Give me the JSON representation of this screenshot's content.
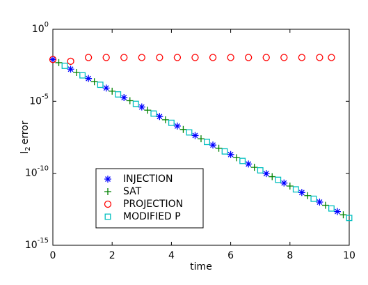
{
  "chart_data": {
    "type": "scatter",
    "log_y": true,
    "xlabel": "time",
    "ylabel": {
      "main": "l",
      "sub": "2",
      "rest": "error"
    },
    "xlim": [
      0,
      10
    ],
    "xticks": [
      0,
      2,
      4,
      6,
      8,
      10
    ],
    "ylim": [
      1e-15,
      1
    ],
    "yticks": [
      {
        "value": 1,
        "label": "10",
        "exponent": "0"
      },
      {
        "value": 1e-05,
        "label": "10",
        "exponent": "-5"
      },
      {
        "value": 1e-10,
        "label": "10",
        "exponent": "-10"
      },
      {
        "value": 1e-15,
        "label": "10",
        "exponent": "-15"
      }
    ],
    "legend": "lower-left",
    "series": [
      {
        "name": "INJECTION",
        "color": "#0000ff",
        "marker": "asterisk",
        "x": [
          0,
          0.6,
          1.2,
          1.8,
          2.4,
          3.0,
          3.6,
          4.2,
          4.8,
          5.4,
          6.0,
          6.6,
          7.2,
          7.8,
          8.4,
          9.0,
          9.6
        ],
        "values": [
          0.008,
          0.0017,
          0.00038,
          8.3e-05,
          1.8e-05,
          4e-06,
          8.7e-07,
          1.9e-07,
          4.2e-08,
          9.1e-09,
          2e-09,
          4.4e-10,
          9.5e-11,
          2.1e-11,
          4.6e-12,
          1e-12,
          2.2e-13
        ]
      },
      {
        "name": "SAT",
        "color": "#008000",
        "marker": "plus",
        "x": [
          0.2,
          0.8,
          1.4,
          2.0,
          2.6,
          3.2,
          3.8,
          4.4,
          5.0,
          5.6,
          6.2,
          6.8,
          7.4,
          8.0,
          8.6,
          9.2,
          9.8
        ],
        "values": [
          0.0048,
          0.001,
          0.00023,
          5e-05,
          1.1e-05,
          2.4e-06,
          5.2e-07,
          1.1e-07,
          2.5e-08,
          5.5e-09,
          1.2e-09,
          2.6e-10,
          5.8e-11,
          1.3e-11,
          2.8e-12,
          6e-13,
          1.3e-13
        ]
      },
      {
        "name": "PROJECTION",
        "color": "#ff0000",
        "marker": "circle",
        "x": [
          0,
          0.6,
          1.2,
          1.8,
          2.4,
          3.0,
          3.6,
          4.2,
          4.8,
          5.4,
          6.0,
          6.6,
          7.2,
          7.8,
          8.4,
          9.0,
          9.4
        ],
        "values": [
          0.008,
          0.006,
          0.011,
          0.011,
          0.011,
          0.011,
          0.011,
          0.011,
          0.011,
          0.011,
          0.011,
          0.011,
          0.011,
          0.011,
          0.011,
          0.011,
          0.011
        ]
      },
      {
        "name": "MODIFIED P",
        "color": "#00bfbf",
        "marker": "square",
        "x": [
          0.4,
          1.0,
          1.6,
          2.2,
          2.8,
          3.4,
          4.0,
          4.6,
          5.2,
          5.8,
          6.4,
          7.0,
          7.6,
          8.2,
          8.8,
          9.4,
          10.0
        ],
        "values": [
          0.0029,
          0.00063,
          0.00014,
          3e-05,
          6.6e-06,
          1.4e-06,
          3.2e-07,
          6.9e-08,
          1.5e-08,
          3.3e-09,
          7.2e-10,
          1.6e-10,
          3.5e-11,
          7.6e-12,
          1.7e-12,
          3.6e-13,
          7.9e-14
        ]
      }
    ]
  }
}
